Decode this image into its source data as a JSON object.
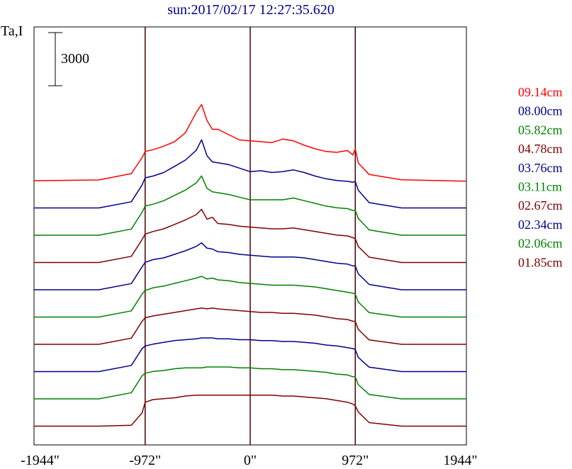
{
  "title": "sun:2017/02/17 12:27:35.620",
  "ylabel": "Ta,I",
  "scale_bar_label": "3000",
  "chart_data": {
    "type": "line",
    "title": "sun:2017/02/17 12:27:35.620",
    "xlabel": "",
    "ylabel": "Ta,I",
    "xlim": [
      -2000,
      2000
    ],
    "x_ticks": [
      "-1944\"",
      "-972\"",
      "0\"",
      "972\"",
      "1944\""
    ],
    "x_tick_values": [
      -1944,
      -972,
      0,
      972,
      1944
    ],
    "vertical_lines": [
      -972,
      0,
      972
    ],
    "scale_bar": 3000,
    "legend_position": "right",
    "grid": false,
    "series": [
      {
        "name": "09.14cm",
        "color": "#ff0000",
        "x": [
          -1944,
          -1400,
          -1100,
          -1000,
          -972,
          -900,
          -800,
          -700,
          -600,
          -500,
          -450,
          -400,
          -350,
          -300,
          -200,
          -100,
          0,
          100,
          200,
          300,
          400,
          500,
          600,
          700,
          800,
          900,
          950,
          972,
          1000,
          1100,
          1400,
          1944
        ],
        "y": [
          0,
          80,
          800,
          2600,
          3300,
          3500,
          3900,
          4400,
          5400,
          7700,
          8600,
          6800,
          5800,
          5800,
          5200,
          4600,
          4500,
          4400,
          4300,
          4700,
          4500,
          4000,
          3600,
          3300,
          3200,
          3400,
          2900,
          3600,
          2000,
          700,
          100,
          -50
        ]
      },
      {
        "name": "08.00cm",
        "color": "#00008b",
        "x": [
          -1944,
          -1400,
          -1100,
          -1000,
          -972,
          -900,
          -800,
          -700,
          -600,
          -500,
          -450,
          -400,
          -350,
          -300,
          -200,
          -100,
          0,
          100,
          200,
          300,
          400,
          500,
          600,
          700,
          800,
          900,
          950,
          972,
          1000,
          1100,
          1400,
          1944
        ],
        "y": [
          0,
          0,
          700,
          2600,
          3400,
          3600,
          4000,
          4700,
          5400,
          6500,
          7700,
          5900,
          5200,
          5100,
          4900,
          4500,
          4100,
          4200,
          4000,
          4100,
          4300,
          4000,
          3600,
          3300,
          3100,
          3000,
          2900,
          3000,
          2000,
          600,
          0,
          0
        ]
      },
      {
        "name": "05.82cm",
        "color": "#008000",
        "x": [
          -1944,
          -1400,
          -1100,
          -1000,
          -972,
          -900,
          -800,
          -700,
          -600,
          -500,
          -450,
          -400,
          -350,
          -300,
          -200,
          -100,
          0,
          100,
          200,
          300,
          400,
          500,
          600,
          700,
          800,
          900,
          950,
          972,
          1000,
          1100,
          1400,
          1944
        ],
        "y": [
          0,
          0,
          700,
          2600,
          3300,
          3500,
          3900,
          4500,
          5100,
          5900,
          6700,
          5300,
          4900,
          4800,
          4600,
          4300,
          4000,
          4000,
          4000,
          4000,
          4200,
          3900,
          3600,
          3300,
          3100,
          3000,
          2800,
          2800,
          1900,
          600,
          0,
          0
        ]
      },
      {
        "name": "04.78cm",
        "color": "#800000",
        "x": [
          -1944,
          -1400,
          -1100,
          -1000,
          -972,
          -900,
          -800,
          -700,
          -600,
          -500,
          -450,
          -400,
          -350,
          -300,
          -200,
          -100,
          0,
          100,
          200,
          300,
          400,
          500,
          600,
          700,
          800,
          900,
          950,
          972,
          1000,
          1100,
          1400,
          1944
        ],
        "y": [
          0,
          0,
          700,
          2600,
          3200,
          3500,
          3800,
          4300,
          4800,
          5400,
          6000,
          4900,
          5100,
          4400,
          4300,
          4100,
          4000,
          3900,
          3800,
          3800,
          3900,
          3700,
          3500,
          3300,
          3100,
          3000,
          2800,
          2700,
          1800,
          600,
          0,
          0
        ]
      },
      {
        "name": "03.76cm",
        "color": "#00008b",
        "x": [
          -1944,
          -1400,
          -1100,
          -1000,
          -972,
          -900,
          -800,
          -700,
          -600,
          -500,
          -450,
          -400,
          -350,
          -300,
          -200,
          -100,
          0,
          100,
          200,
          300,
          400,
          500,
          600,
          700,
          800,
          900,
          950,
          972,
          1000,
          1100,
          1400,
          1944
        ],
        "y": [
          0,
          0,
          700,
          2600,
          3100,
          3400,
          3600,
          4000,
          4400,
          4900,
          5300,
          4700,
          4600,
          4300,
          4200,
          4000,
          3900,
          3800,
          3700,
          3700,
          3700,
          3600,
          3400,
          3200,
          3000,
          2900,
          2700,
          2700,
          1800,
          600,
          0,
          0
        ]
      },
      {
        "name": "03.11cm",
        "color": "#008000",
        "x": [
          -1944,
          -1400,
          -1100,
          -1000,
          -972,
          -900,
          -800,
          -700,
          -600,
          -500,
          -450,
          -400,
          -350,
          -300,
          -200,
          -100,
          0,
          100,
          200,
          300,
          400,
          500,
          600,
          700,
          800,
          900,
          950,
          972,
          1000,
          1100,
          1400,
          1944
        ],
        "y": [
          0,
          0,
          700,
          2600,
          3000,
          3300,
          3500,
          3800,
          4100,
          4400,
          4600,
          4300,
          4400,
          4200,
          4100,
          3900,
          3800,
          3700,
          3600,
          3600,
          3600,
          3500,
          3400,
          3200,
          3000,
          2800,
          2700,
          2600,
          1700,
          500,
          0,
          0
        ]
      },
      {
        "name": "02.67cm",
        "color": "#800000",
        "x": [
          -1944,
          -1400,
          -1100,
          -1000,
          -972,
          -900,
          -800,
          -700,
          -600,
          -500,
          -450,
          -400,
          -350,
          -300,
          -200,
          -100,
          0,
          100,
          200,
          300,
          400,
          500,
          600,
          700,
          800,
          900,
          950,
          972,
          1000,
          1100,
          1400,
          1944
        ],
        "y": [
          0,
          0,
          700,
          2600,
          3000,
          3200,
          3400,
          3600,
          3800,
          4000,
          4100,
          4000,
          4100,
          4000,
          3900,
          3800,
          3700,
          3600,
          3600,
          3500,
          3500,
          3400,
          3300,
          3100,
          2900,
          2800,
          2600,
          2600,
          1700,
          500,
          0,
          0
        ]
      },
      {
        "name": "02.34cm",
        "color": "#00008b",
        "x": [
          -1944,
          -1400,
          -1100,
          -1000,
          -972,
          -900,
          -800,
          -700,
          -600,
          -500,
          -450,
          -400,
          -350,
          -300,
          -200,
          -100,
          0,
          100,
          200,
          300,
          400,
          500,
          600,
          700,
          800,
          900,
          950,
          972,
          1000,
          1100,
          1400,
          1944
        ],
        "y": [
          0,
          0,
          700,
          2600,
          2900,
          3100,
          3300,
          3500,
          3600,
          3700,
          3800,
          3800,
          3800,
          3700,
          3700,
          3600,
          3600,
          3500,
          3500,
          3400,
          3400,
          3300,
          3200,
          3000,
          2900,
          2700,
          2600,
          2500,
          1600,
          500,
          0,
          0
        ]
      },
      {
        "name": "02.06cm",
        "color": "#008000",
        "x": [
          -1944,
          -1400,
          -1100,
          -1000,
          -972,
          -900,
          -800,
          -700,
          -600,
          -500,
          -450,
          -400,
          -350,
          -300,
          -200,
          -100,
          0,
          100,
          200,
          300,
          400,
          500,
          600,
          700,
          800,
          900,
          950,
          972,
          1000,
          1100,
          1400,
          1944
        ],
        "y": [
          0,
          0,
          700,
          2600,
          2900,
          3100,
          3200,
          3400,
          3500,
          3500,
          3500,
          3600,
          3600,
          3600,
          3600,
          3500,
          3500,
          3400,
          3400,
          3300,
          3300,
          3200,
          3100,
          3000,
          2800,
          2700,
          2500,
          2500,
          1600,
          500,
          0,
          0
        ]
      },
      {
        "name": "01.85cm",
        "color": "#800000",
        "x": [
          -1944,
          -1400,
          -1100,
          -1000,
          -972,
          -900,
          -800,
          -700,
          -600,
          -500,
          -450,
          -400,
          -350,
          -300,
          -200,
          -100,
          0,
          100,
          200,
          300,
          400,
          500,
          600,
          700,
          800,
          900,
          950,
          972,
          1000,
          1100,
          1400,
          1944
        ],
        "y": [
          0,
          0,
          100,
          1500,
          2700,
          3000,
          3100,
          3200,
          3400,
          3500,
          3500,
          3500,
          3500,
          3500,
          3500,
          3500,
          3500,
          3500,
          3500,
          3400,
          3400,
          3300,
          3200,
          3100,
          2900,
          2700,
          2500,
          2300,
          1600,
          400,
          0,
          0
        ]
      }
    ]
  }
}
